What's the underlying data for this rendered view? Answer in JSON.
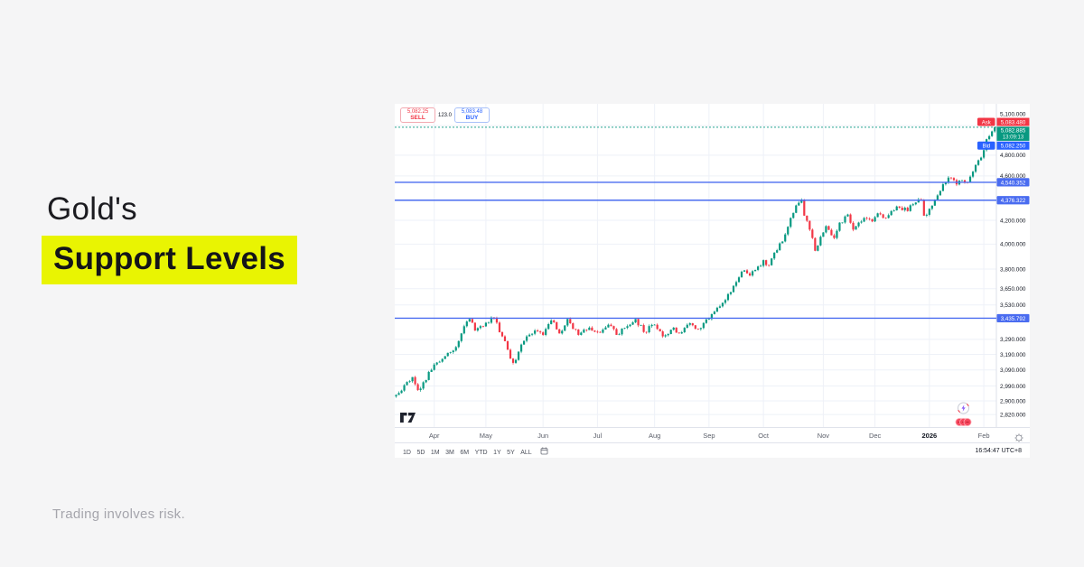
{
  "headline": {
    "line1": "Gold's",
    "line2": "Support Levels",
    "highlight_color": "#e9f402",
    "text_color": "#17171c"
  },
  "disclaimer": "Trading involves risk.",
  "chart": {
    "order_panel": {
      "sell_price": "5,082.25",
      "sell_label": "SELL",
      "spread": "123.0",
      "buy_price": "5,083.48",
      "buy_label": "BUY"
    },
    "quote": {
      "ask_label": "Ask",
      "ask": "5,083.480",
      "last": "5,082.885",
      "countdown": "13:09:13",
      "bid_label": "Bid",
      "bid": "5,082.250"
    },
    "toolbar": {
      "ranges": [
        "1D",
        "5D",
        "1M",
        "3M",
        "6M",
        "YTD",
        "1Y",
        "5Y",
        "ALL"
      ],
      "clock": "16:54:47 UTC+8"
    },
    "attribution_logo": "tradingview",
    "colors": {
      "up": "#089981",
      "down": "#f23645",
      "ask_bg": "#f23645",
      "bid_bg": "#2962ff",
      "last_bg": "#089981",
      "support_line": "#4a6cf0",
      "grid": "#eef1f8",
      "axis_border": "#dde0ea",
      "axis_text": "#131722",
      "month_text": "#5a5e69"
    }
  },
  "chart_data": {
    "type": "candlestick",
    "title": "Gold price with three support levels",
    "y_axis": {
      "scale": "log",
      "ticks": [
        5100,
        4800,
        4600,
        4200,
        4000,
        3800,
        3650,
        3530,
        3290,
        3190,
        3090,
        2990,
        2900,
        2820
      ],
      "tick_format": "#,##0.000"
    },
    "x_axis": {
      "labels": [
        {
          "text": "Apr",
          "day": 14,
          "strong": false
        },
        {
          "text": "May",
          "day": 33,
          "strong": false
        },
        {
          "text": "Jun",
          "day": 54,
          "strong": false
        },
        {
          "text": "Jul",
          "day": 74,
          "strong": false
        },
        {
          "text": "Aug",
          "day": 95,
          "strong": false
        },
        {
          "text": "Sep",
          "day": 115,
          "strong": false
        },
        {
          "text": "Oct",
          "day": 135,
          "strong": false
        },
        {
          "text": "Nov",
          "day": 157,
          "strong": false
        },
        {
          "text": "Dec",
          "day": 176,
          "strong": false
        },
        {
          "text": "2026",
          "day": 196,
          "strong": true
        },
        {
          "text": "Feb",
          "day": 216,
          "strong": false
        }
      ]
    },
    "support_levels": [
      4540.352,
      4376.322,
      3435.792
    ],
    "current_price": 5082.885,
    "ask_price": 5083.48,
    "bid_price": 5082.25,
    "candle_count": 221,
    "waypoints_day_price": [
      [
        0,
        2935
      ],
      [
        3,
        2995
      ],
      [
        6,
        3045
      ],
      [
        8,
        2965
      ],
      [
        13,
        3090
      ],
      [
        17,
        3160
      ],
      [
        21,
        3215
      ],
      [
        24,
        3330
      ],
      [
        27,
        3430
      ],
      [
        29,
        3350
      ],
      [
        31,
        3380
      ],
      [
        36,
        3435
      ],
      [
        39,
        3310
      ],
      [
        43,
        3135
      ],
      [
        47,
        3280
      ],
      [
        51,
        3350
      ],
      [
        54,
        3320
      ],
      [
        57,
        3420
      ],
      [
        60,
        3330
      ],
      [
        63,
        3430
      ],
      [
        67,
        3320
      ],
      [
        71,
        3370
      ],
      [
        74,
        3340
      ],
      [
        78,
        3390
      ],
      [
        81,
        3320
      ],
      [
        85,
        3380
      ],
      [
        88,
        3430
      ],
      [
        91,
        3340
      ],
      [
        95,
        3390
      ],
      [
        98,
        3310
      ],
      [
        102,
        3370
      ],
      [
        104,
        3330
      ],
      [
        108,
        3400
      ],
      [
        111,
        3360
      ],
      [
        115,
        3430
      ],
      [
        119,
        3520
      ],
      [
        122,
        3610
      ],
      [
        125,
        3700
      ],
      [
        128,
        3790
      ],
      [
        130,
        3750
      ],
      [
        133,
        3820
      ],
      [
        135,
        3870
      ],
      [
        137,
        3830
      ],
      [
        140,
        3950
      ],
      [
        143,
        4080
      ],
      [
        145,
        4220
      ],
      [
        147,
        4330
      ],
      [
        149,
        4378
      ],
      [
        150,
        4240
      ],
      [
        152,
        4120
      ],
      [
        154,
        3945
      ],
      [
        156,
        4060
      ],
      [
        158,
        4150
      ],
      [
        161,
        4050
      ],
      [
        163,
        4180
      ],
      [
        166,
        4250
      ],
      [
        168,
        4120
      ],
      [
        170,
        4180
      ],
      [
        172,
        4220
      ],
      [
        175,
        4190
      ],
      [
        177,
        4260
      ],
      [
        180,
        4220
      ],
      [
        182,
        4280
      ],
      [
        185,
        4310
      ],
      [
        188,
        4280
      ],
      [
        190,
        4340
      ],
      [
        193,
        4376
      ],
      [
        194,
        4240
      ],
      [
        196,
        4300
      ],
      [
        199,
        4420
      ],
      [
        202,
        4540
      ],
      [
        204,
        4580
      ],
      [
        206,
        4520
      ],
      [
        208,
        4560
      ],
      [
        210,
        4540
      ],
      [
        212,
        4640
      ],
      [
        214,
        4750
      ],
      [
        216,
        4850
      ],
      [
        217,
        4960
      ],
      [
        219,
        5040
      ],
      [
        220,
        5083
      ]
    ]
  }
}
